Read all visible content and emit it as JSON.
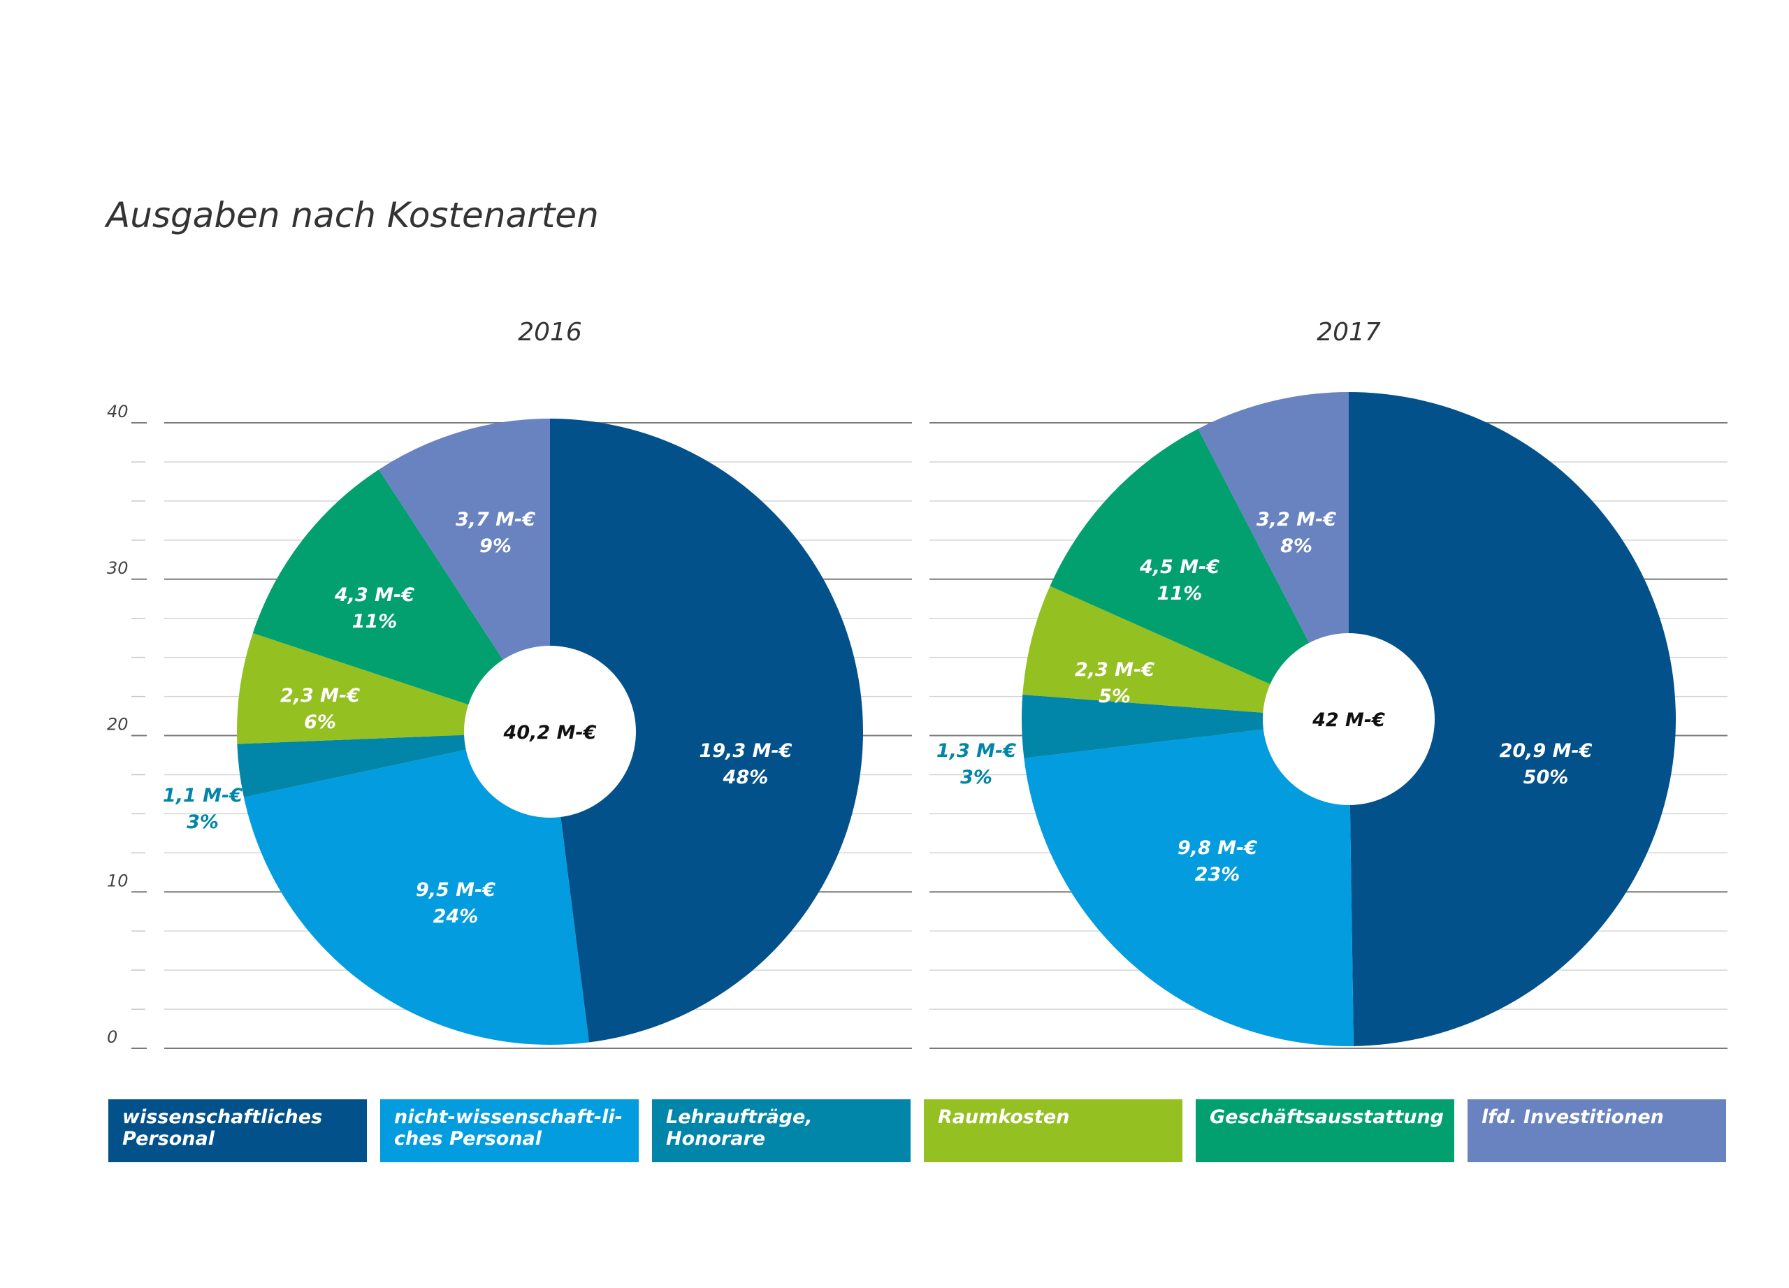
{
  "title": "Ausgaben nach Kostenarten",
  "colors": {
    "wissenschaftliches_personal": "#03518a",
    "nicht_wissenschaftliches_personal": "#029cdf",
    "lehrauftraege": "#0185a8",
    "raumkosten": "#94c021",
    "geschaeftsausstattung": "#02a06e",
    "investitionen": "#6983c1"
  },
  "legend": [
    {
      "label": "wissenschaftliches Personal",
      "color": "#03518a"
    },
    {
      "label": "nicht-wissenschaft-li-ches Personal",
      "color": "#029cdf"
    },
    {
      "label": "Lehraufträge, Honorare",
      "color": "#0185a8"
    },
    {
      "label": "Raumkosten",
      "color": "#94c021"
    },
    {
      "label": "Geschäftsausstattung",
      "color": "#02a06e"
    },
    {
      "label": "lfd. Investitionen",
      "color": "#6983c1"
    }
  ],
  "chart_data": [
    {
      "type": "pie",
      "title": "2016",
      "total_label": "40,2 M-€",
      "total": 40.2,
      "y_axis": {
        "ticks": [
          "0",
          "10",
          "20",
          "30",
          "40"
        ],
        "ylim": [
          0,
          40
        ]
      },
      "grid": true,
      "slices": [
        {
          "category": "wissenschaftliches Personal",
          "value": 19.3,
          "value_label": "19,3 M-€",
          "percent_label": "48%"
        },
        {
          "category": "nicht-wissenschaft-li-ches Personal",
          "value": 9.5,
          "value_label": "9,5 M-€",
          "percent_label": "24%"
        },
        {
          "category": "Lehraufträge, Honorare",
          "value": 1.1,
          "value_label": "1,1 M-€",
          "percent_label": "3%"
        },
        {
          "category": "Raumkosten",
          "value": 2.3,
          "value_label": "2,3 M-€",
          "percent_label": "6%"
        },
        {
          "category": "Geschäftsausstattung",
          "value": 4.3,
          "value_label": "4,3 M-€",
          "percent_label": "11%"
        },
        {
          "category": "lfd. Investitionen",
          "value": 3.7,
          "value_label": "3,7 M-€",
          "percent_label": "9%"
        }
      ]
    },
    {
      "type": "pie",
      "title": "2017",
      "total_label": "42 M-€",
      "total": 42,
      "grid": true,
      "slices": [
        {
          "category": "wissenschaftliches Personal",
          "value": 20.9,
          "value_label": "20,9 M-€",
          "percent_label": "50%"
        },
        {
          "category": "nicht-wissenschaft-li-ches Personal",
          "value": 9.8,
          "value_label": "9,8 M-€",
          "percent_label": "23%"
        },
        {
          "category": "Lehraufträge, Honorare",
          "value": 1.3,
          "value_label": "1,3 M-€",
          "percent_label": "3%"
        },
        {
          "category": "Raumkosten",
          "value": 2.3,
          "value_label": "2,3 M-€",
          "percent_label": "5%"
        },
        {
          "category": "Geschäftsausstattung",
          "value": 4.5,
          "value_label": "4,5 M-€",
          "percent_label": "11%"
        },
        {
          "category": "lfd. Investitionen",
          "value": 3.2,
          "value_label": "3,2 M-€",
          "percent_label": "8%"
        }
      ]
    }
  ]
}
